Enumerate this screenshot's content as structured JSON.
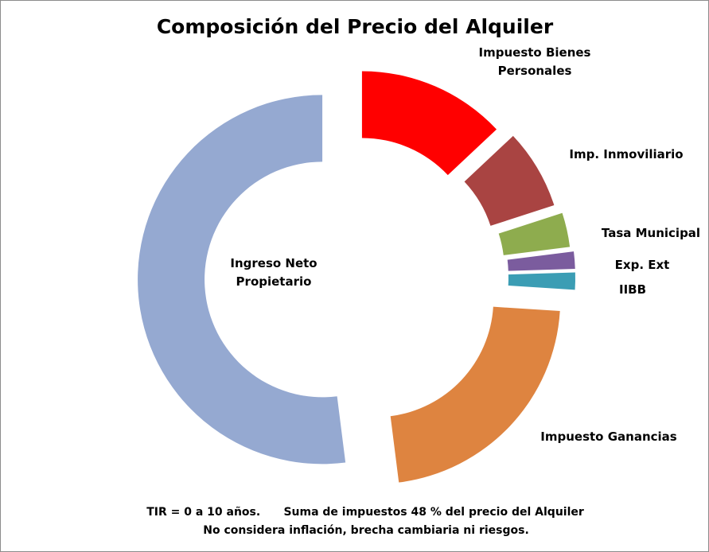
{
  "chart_data": {
    "type": "pie",
    "variant": "exploded-doughnut",
    "title": "Composición del Precio del Alquiler",
    "legend": "none (labels beside slices)",
    "slices": [
      {
        "label": "Impuesto Bienes Personales",
        "label_lines": [
          "Impuesto Bienes",
          "Personales"
        ],
        "value": 13.0,
        "color": "#ff0000"
      },
      {
        "label": "Imp. Inmoviliario",
        "label_lines": [
          "Imp. Inmoviliario"
        ],
        "value": 7.0,
        "color": "#a94442"
      },
      {
        "label": "Tasa Municipal",
        "label_lines": [
          "Tasa Municipal"
        ],
        "value": 3.0,
        "color": "#8eac4e"
      },
      {
        "label": "Exp. Ext",
        "label_lines": [
          "Exp. Ext"
        ],
        "value": 1.5,
        "color": "#7b5c9e"
      },
      {
        "label": "IIBB",
        "label_lines": [
          "IIBB"
        ],
        "value": 1.5,
        "color": "#3b9db4"
      },
      {
        "label": "Impuesto Ganancias",
        "label_lines": [
          "Impuesto Ganancias"
        ],
        "value": 22.0,
        "color": "#de8440"
      },
      {
        "label": "Ingreso Neto Propietario",
        "label_lines": [
          "Ingreso Neto",
          "Propietario"
        ],
        "value": 52.0,
        "color": "#95a9d1"
      }
    ],
    "notes": [
      "TIR = 0 a 10 años.      Suma de impuestos 48 % del precio del Alquiler",
      "No considera inflación, brecha cambiaria ni riesgos."
    ]
  }
}
